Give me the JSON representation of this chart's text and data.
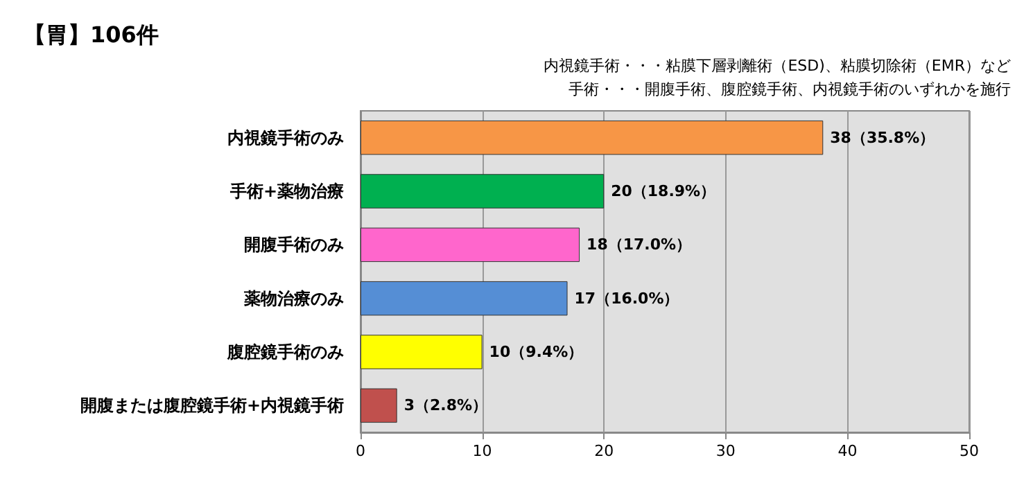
{
  "chart_data": {
    "type": "bar",
    "orientation": "horizontal",
    "title": "【胃】106件",
    "annotations": [
      "内視鏡手術・・・粘膜下層剥離術（ESD)、粘膜切除術（EMR）など",
      "手術・・・開腹手術、腹腔鏡手術、内視鏡手術のいずれかを施行"
    ],
    "categories": [
      "内視鏡手術のみ",
      "手術+薬物治療",
      "開腹手術のみ",
      "薬物治療のみ",
      "腹腔鏡手術のみ",
      "開腹または腹腔鏡手術+内視鏡手術"
    ],
    "values": [
      38,
      20,
      18,
      17,
      10,
      3
    ],
    "colors": [
      "#f79646",
      "#00b050",
      "#ff66cc",
      "#558ed5",
      "#ffff00",
      "#c0504d"
    ],
    "value_labels": [
      "38（35.8%）",
      "20（18.9%）",
      "18（17.0%）",
      "17（16.0%）",
      "10（9.4%）",
      "3（2.8%）"
    ],
    "xlim": [
      0,
      50
    ],
    "xticks": [
      0,
      10,
      20,
      30,
      40,
      50
    ],
    "grid": "x"
  }
}
